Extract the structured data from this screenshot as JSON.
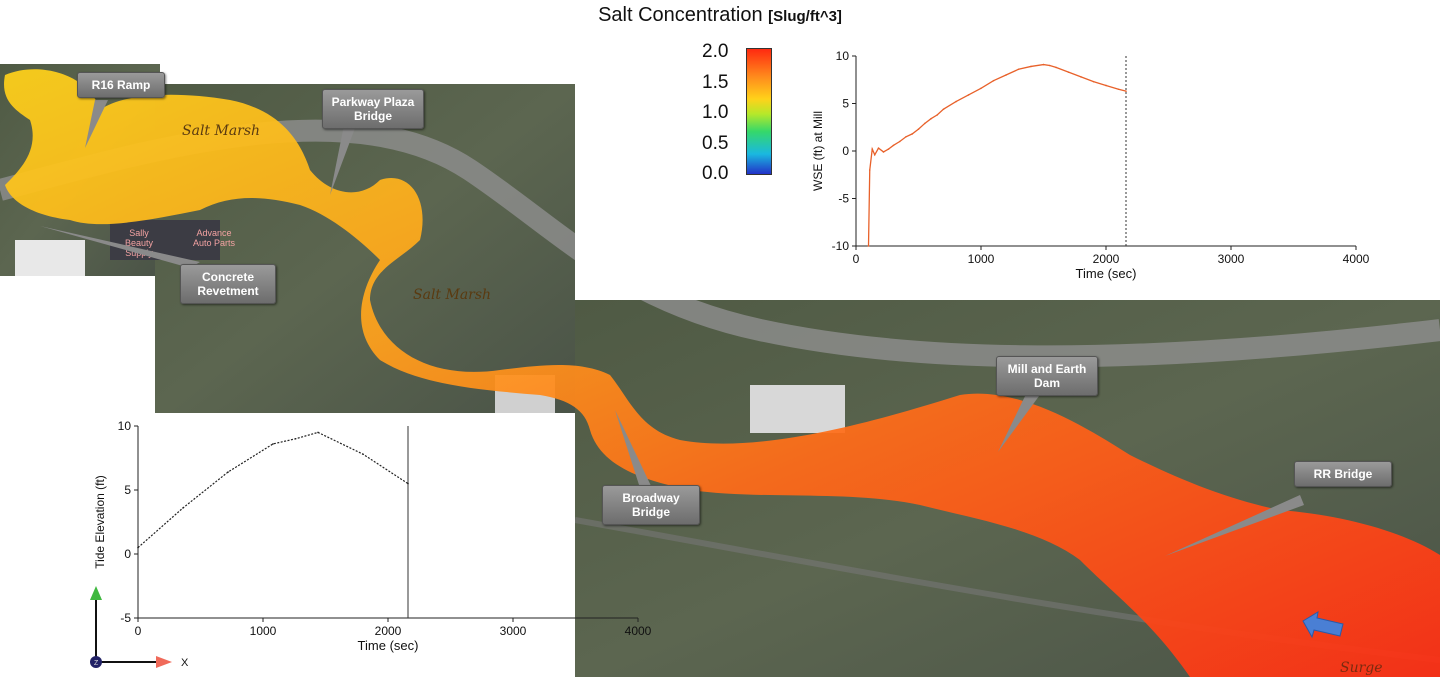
{
  "title": {
    "main": "Salt Concentration ",
    "unit": "[Slug/ft^3]"
  },
  "colorbar": {
    "ticks": [
      "2.0",
      "1.5",
      "1.0",
      "0.5",
      "0.0"
    ],
    "range": [
      0.0,
      2.0
    ]
  },
  "map": {
    "callouts": {
      "r16": "R16 Ramp",
      "parkway": "Parkway Plaza Bridge",
      "concrete": "Concrete Revetment",
      "mill": "Mill and Earth Dam",
      "broadway": "Broadway Bridge",
      "rr": "RR Bridge"
    },
    "labels": {
      "salt_marsh_1": "Salt Marsh",
      "salt_marsh_2": "Salt Marsh",
      "surge": "Surge",
      "store": "Sally Beauty Supply",
      "store2": "Advance Auto Parts"
    },
    "colors": {
      "water_high": "#ff3b16",
      "water_mid": "#ff9a1a",
      "water_low": "#ffd21a"
    }
  },
  "axes_triad": {
    "y": "y",
    "x": "X",
    "z": "Z"
  },
  "chart_data": [
    {
      "type": "line",
      "title": "",
      "xlabel": "Time (sec)",
      "ylabel": "WSE (ft) at Mill",
      "xlim": [
        0,
        4000
      ],
      "ylim": [
        -10,
        10
      ],
      "xticks": [
        0,
        1000,
        2000,
        3000,
        4000
      ],
      "yticks": [
        -10,
        -5,
        0,
        5,
        10
      ],
      "xtick_labels": [
        "0",
        "1000",
        "2000",
        "3000",
        "4000"
      ],
      "ytick_labels": [
        "-10",
        "-5",
        "0",
        "5",
        "10"
      ],
      "current_time": 2160,
      "color": "#e8612a",
      "x": [
        100,
        110,
        130,
        150,
        180,
        220,
        260,
        300,
        350,
        400,
        450,
        500,
        550,
        600,
        650,
        700,
        800,
        900,
        1000,
        1100,
        1200,
        1300,
        1400,
        1500,
        1550,
        1600,
        1700,
        1800,
        1900,
        2000,
        2100,
        2160
      ],
      "y": [
        -10,
        -2,
        0.2,
        -0.4,
        0.3,
        -0.1,
        0.2,
        0.6,
        1.0,
        1.5,
        1.8,
        2.3,
        2.9,
        3.4,
        3.8,
        4.4,
        5.2,
        5.9,
        6.6,
        7.4,
        8.0,
        8.6,
        8.9,
        9.1,
        9.0,
        8.8,
        8.3,
        7.8,
        7.3,
        6.9,
        6.5,
        6.3
      ]
    },
    {
      "type": "line",
      "title": "",
      "xlabel": "Time (sec)",
      "ylabel": "Tide Elevation (ft)",
      "xlim": [
        0,
        4000
      ],
      "ylim": [
        -5,
        10
      ],
      "xticks": [
        0,
        1000,
        2000,
        3000,
        4000
      ],
      "yticks": [
        -5,
        0,
        5,
        10
      ],
      "xtick_labels": [
        "0",
        "1000",
        "2000",
        "3000",
        "4000"
      ],
      "ytick_labels": [
        "-5",
        "0",
        "5",
        "10"
      ],
      "current_time": 2160,
      "color": "#222222",
      "x": [
        0,
        360,
        720,
        1080,
        1260,
        1440,
        1800,
        2160
      ],
      "y": [
        0.5,
        3.6,
        6.4,
        8.6,
        9.0,
        9.5,
        7.8,
        5.5
      ]
    }
  ]
}
